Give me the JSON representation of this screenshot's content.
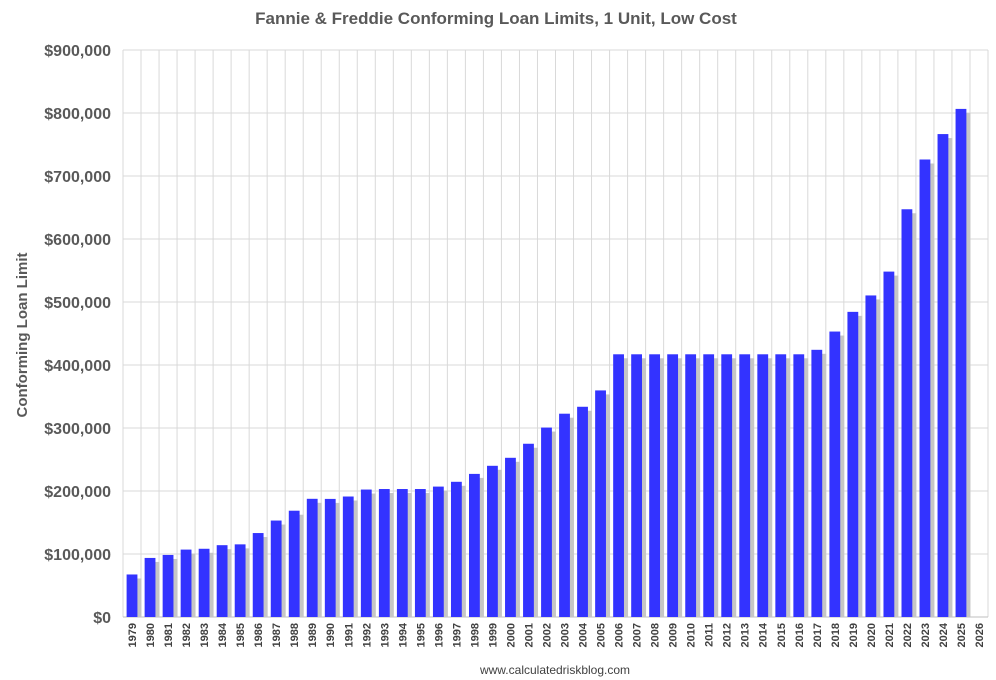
{
  "chart_data": {
    "type": "bar",
    "title": "Fannie & Freddie Conforming Loan Limits, 1 Unit, Low Cost",
    "xlabel": "",
    "ylabel": "Conforming Loan Limit",
    "source": "www.calculatedriskblog.com",
    "ylim": [
      0,
      900000
    ],
    "yticks": [
      "$0",
      "$100,000",
      "$200,000",
      "$300,000",
      "$400,000",
      "$500,000",
      "$600,000",
      "$700,000",
      "$800,000",
      "$900,000"
    ],
    "categories": [
      "1979",
      "1980",
      "1981",
      "1982",
      "1983",
      "1984",
      "1985",
      "1986",
      "1987",
      "1988",
      "1989",
      "1990",
      "1991",
      "1992",
      "1993",
      "1994",
      "1995",
      "1996",
      "1997",
      "1998",
      "1999",
      "2000",
      "2001",
      "2002",
      "2003",
      "2004",
      "2005",
      "2006",
      "2007",
      "2008",
      "2009",
      "2010",
      "2011",
      "2012",
      "2013",
      "2014",
      "2015",
      "2016",
      "2017",
      "2018",
      "2019",
      "2020",
      "2021",
      "2022",
      "2023",
      "2024",
      "2025",
      "2026"
    ],
    "series": [
      {
        "values": [
          67500,
          93750,
          98500,
          107000,
          108300,
          114000,
          115300,
          133250,
          153100,
          168700,
          187600,
          187450,
          191250,
          202300,
          203150,
          203150,
          203150,
          207000,
          214600,
          227150,
          240000,
          252700,
          275000,
          300700,
          322700,
          333700,
          359650,
          417000,
          417000,
          417000,
          417000,
          417000,
          417000,
          417000,
          417000,
          417000,
          417000,
          417000,
          424100,
          453100,
          484350,
          510400,
          548250,
          647200,
          726200,
          766550,
          806500,
          null
        ]
      }
    ],
    "colors": {
      "bar": "#3333ff",
      "shadow": "#c6c6c6",
      "grid": "#d9d9d9",
      "text": "#595959"
    },
    "grid": true,
    "legend": "none"
  }
}
